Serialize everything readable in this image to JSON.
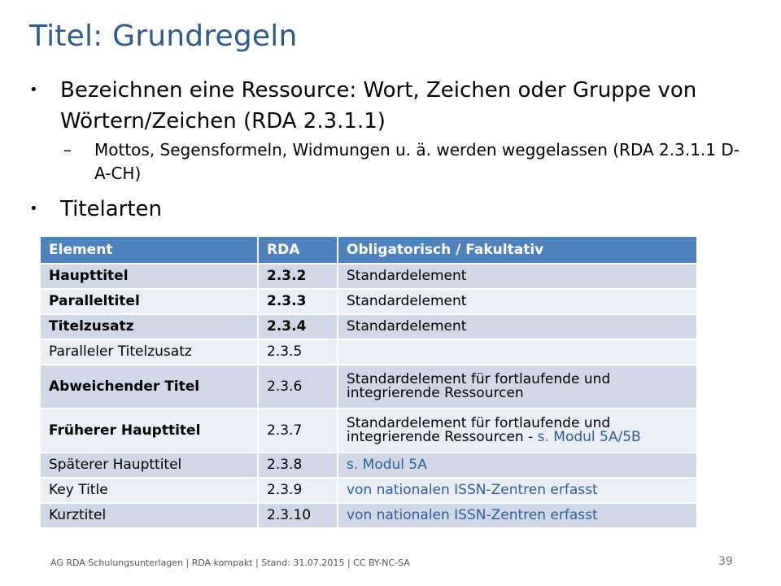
{
  "title": "Titel: Grundregeln",
  "bullets": {
    "b1": "Bezeichnen eine Ressource: Wort, Zeichen oder Gruppe von Wörtern/Zeichen (RDA 2.3.1.1)",
    "b1_sub": "Mottos, Segensformeln, Widmungen u. ä. werden weggelassen (RDA 2.3.1.1 D-A-CH)",
    "b2": "Titelarten",
    "bullet_glyph": "•",
    "dash_glyph": "–"
  },
  "table": {
    "headers": [
      "Element",
      "RDA",
      "Obligatorisch / Fakultativ"
    ],
    "rows": [
      {
        "element": "Haupttitel",
        "rda": "2.3.2",
        "pre": "Standardelement",
        "link": "",
        "bold": true
      },
      {
        "element": "Paralleltitel",
        "rda": "2.3.3",
        "pre": "Standardelement",
        "link": "",
        "bold": true
      },
      {
        "element": "Titelzusatz",
        "rda": "2.3.4",
        "pre": "Standardelement",
        "link": "",
        "bold": true
      },
      {
        "element": "Paralleler Titelzusatz",
        "rda": "2.3.5",
        "pre": "",
        "link": "",
        "bold": false
      },
      {
        "element": "Abweichender Titel",
        "rda": "2.3.6",
        "pre": "Standardelement für fortlaufende und integrierende Ressourcen",
        "link": "",
        "bold": true,
        "rda_bold": false
      },
      {
        "element": "Früherer Haupttitel",
        "rda": "2.3.7",
        "pre": "Standardelement für fortlaufende und integrierende Ressourcen - ",
        "link": "s. Modul 5A/5B",
        "bold": true,
        "rda_bold": false
      },
      {
        "element": "Späterer Haupttitel",
        "rda": "2.3.8",
        "pre": "",
        "link": "s. Modul 5A",
        "bold": false
      },
      {
        "element": "Key Title",
        "rda": "2.3.9",
        "pre": "",
        "link": "von nationalen ISSN-Zentren erfasst",
        "bold": false
      },
      {
        "element": "Kurztitel",
        "rda": "2.3.10",
        "pre": "",
        "link": "von nationalen ISSN-Zentren erfasst",
        "bold": false
      }
    ]
  },
  "footer": "AG RDA Schulungsunterlagen | RDA kompakt | Stand: 31.07.2015 | CC BY-NC-SA",
  "page_number": "39",
  "colors": {
    "title": "#2f5b8c",
    "header": "#4f81bd",
    "row_odd": "#d0d8e8",
    "row_even": "#e9edf4",
    "link": "#2e5e9a"
  }
}
